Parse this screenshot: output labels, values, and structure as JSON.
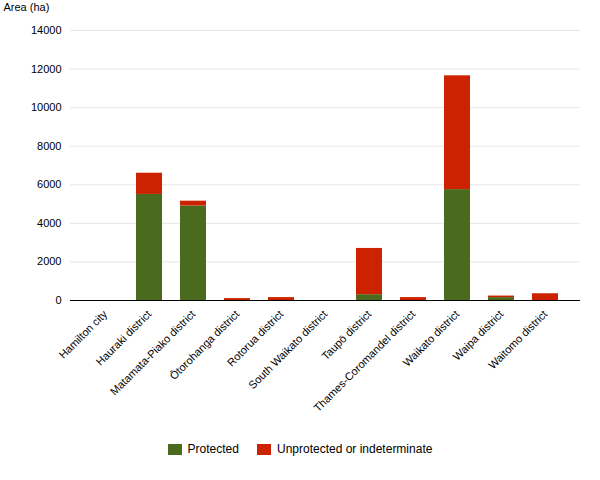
{
  "chart_data": {
    "type": "bar",
    "stacked": true,
    "categories": [
      "Hamilton city",
      "Hauraki district",
      "Matamata-Piako district",
      "Ōtorohanga district",
      "Rotorua district",
      "South Waikato district",
      "Taupō district",
      "Thames-Coromandel district",
      "Waikato district",
      "Waipa district",
      "Waitomo district"
    ],
    "series": [
      {
        "name": "Protected",
        "color": "#4a6b1e",
        "values": [
          0,
          5500,
          4900,
          0,
          0,
          0,
          300,
          0,
          5750,
          150,
          0
        ]
      },
      {
        "name": "Unprotected or indeterminate",
        "color": "#cc2200",
        "values": [
          0,
          1100,
          250,
          100,
          150,
          0,
          2400,
          150,
          5900,
          80,
          350
        ]
      }
    ],
    "ylabel": "Area (ha)",
    "ylim": [
      0,
      14000
    ],
    "yticks": [
      0,
      2000,
      4000,
      6000,
      8000,
      10000,
      12000,
      14000
    ],
    "grid": true,
    "legend": "bottom"
  }
}
